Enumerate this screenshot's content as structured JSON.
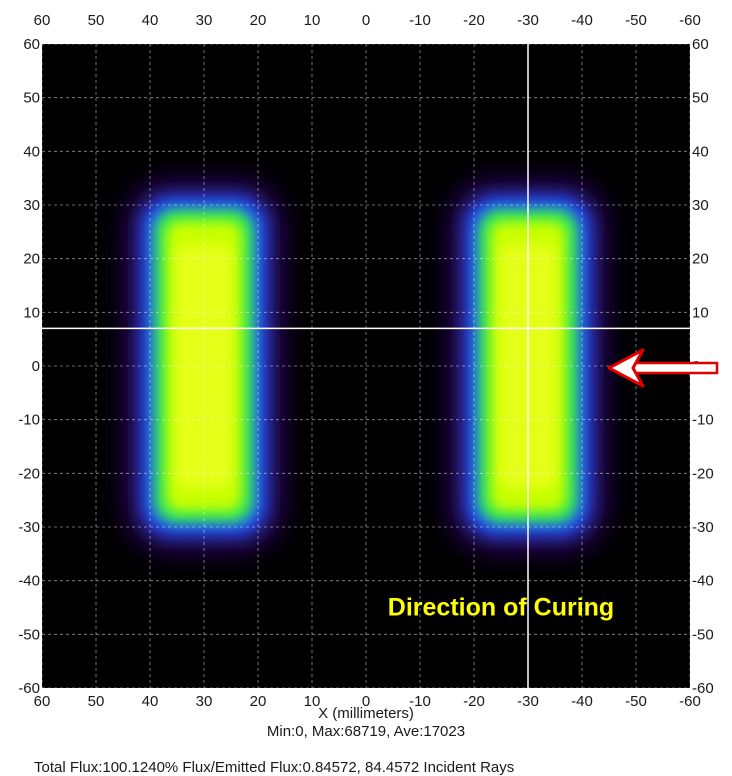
{
  "chart_data": {
    "type": "heatmap",
    "xlabel": "X (millimeters)",
    "xlim": [
      60,
      -60
    ],
    "ylim": [
      -60,
      60
    ],
    "x_ticks": [
      60,
      50,
      40,
      30,
      20,
      10,
      0,
      -10,
      -20,
      -30,
      -40,
      -50,
      -60
    ],
    "y_ticks": [
      60,
      50,
      40,
      30,
      20,
      10,
      0,
      -10,
      -20,
      -30,
      -40,
      -50,
      -60
    ],
    "grid": true,
    "stats": "Min:0, Max:68719, Ave:17023",
    "footer_text": "Total Flux:100.1240% Flux/Emitted Flux:0.84572, 84.4572 Incident Rays",
    "colors": {
      "background": "#000000",
      "low": "#4b0082",
      "mid": "#1e3cff",
      "high": "#8cff00",
      "peak": "#e8ff00",
      "annotation": "#ffff00",
      "arrow": "#e00000"
    },
    "regions": [
      {
        "name": "left-spot",
        "x_range": [
          20,
          40
        ],
        "y_range": [
          -30,
          30
        ],
        "peak_value": 68719
      },
      {
        "name": "right-spot",
        "x_range": [
          -40,
          -20
        ],
        "y_range": [
          -30,
          30
        ],
        "peak_value": 68719
      }
    ],
    "crosshair": {
      "x": -30,
      "y": 7
    },
    "annotation": {
      "text": "Direction of Curing",
      "x": -25,
      "y": -45
    },
    "arrow": {
      "from_x": -65,
      "to_x": -45,
      "y": 0
    }
  }
}
